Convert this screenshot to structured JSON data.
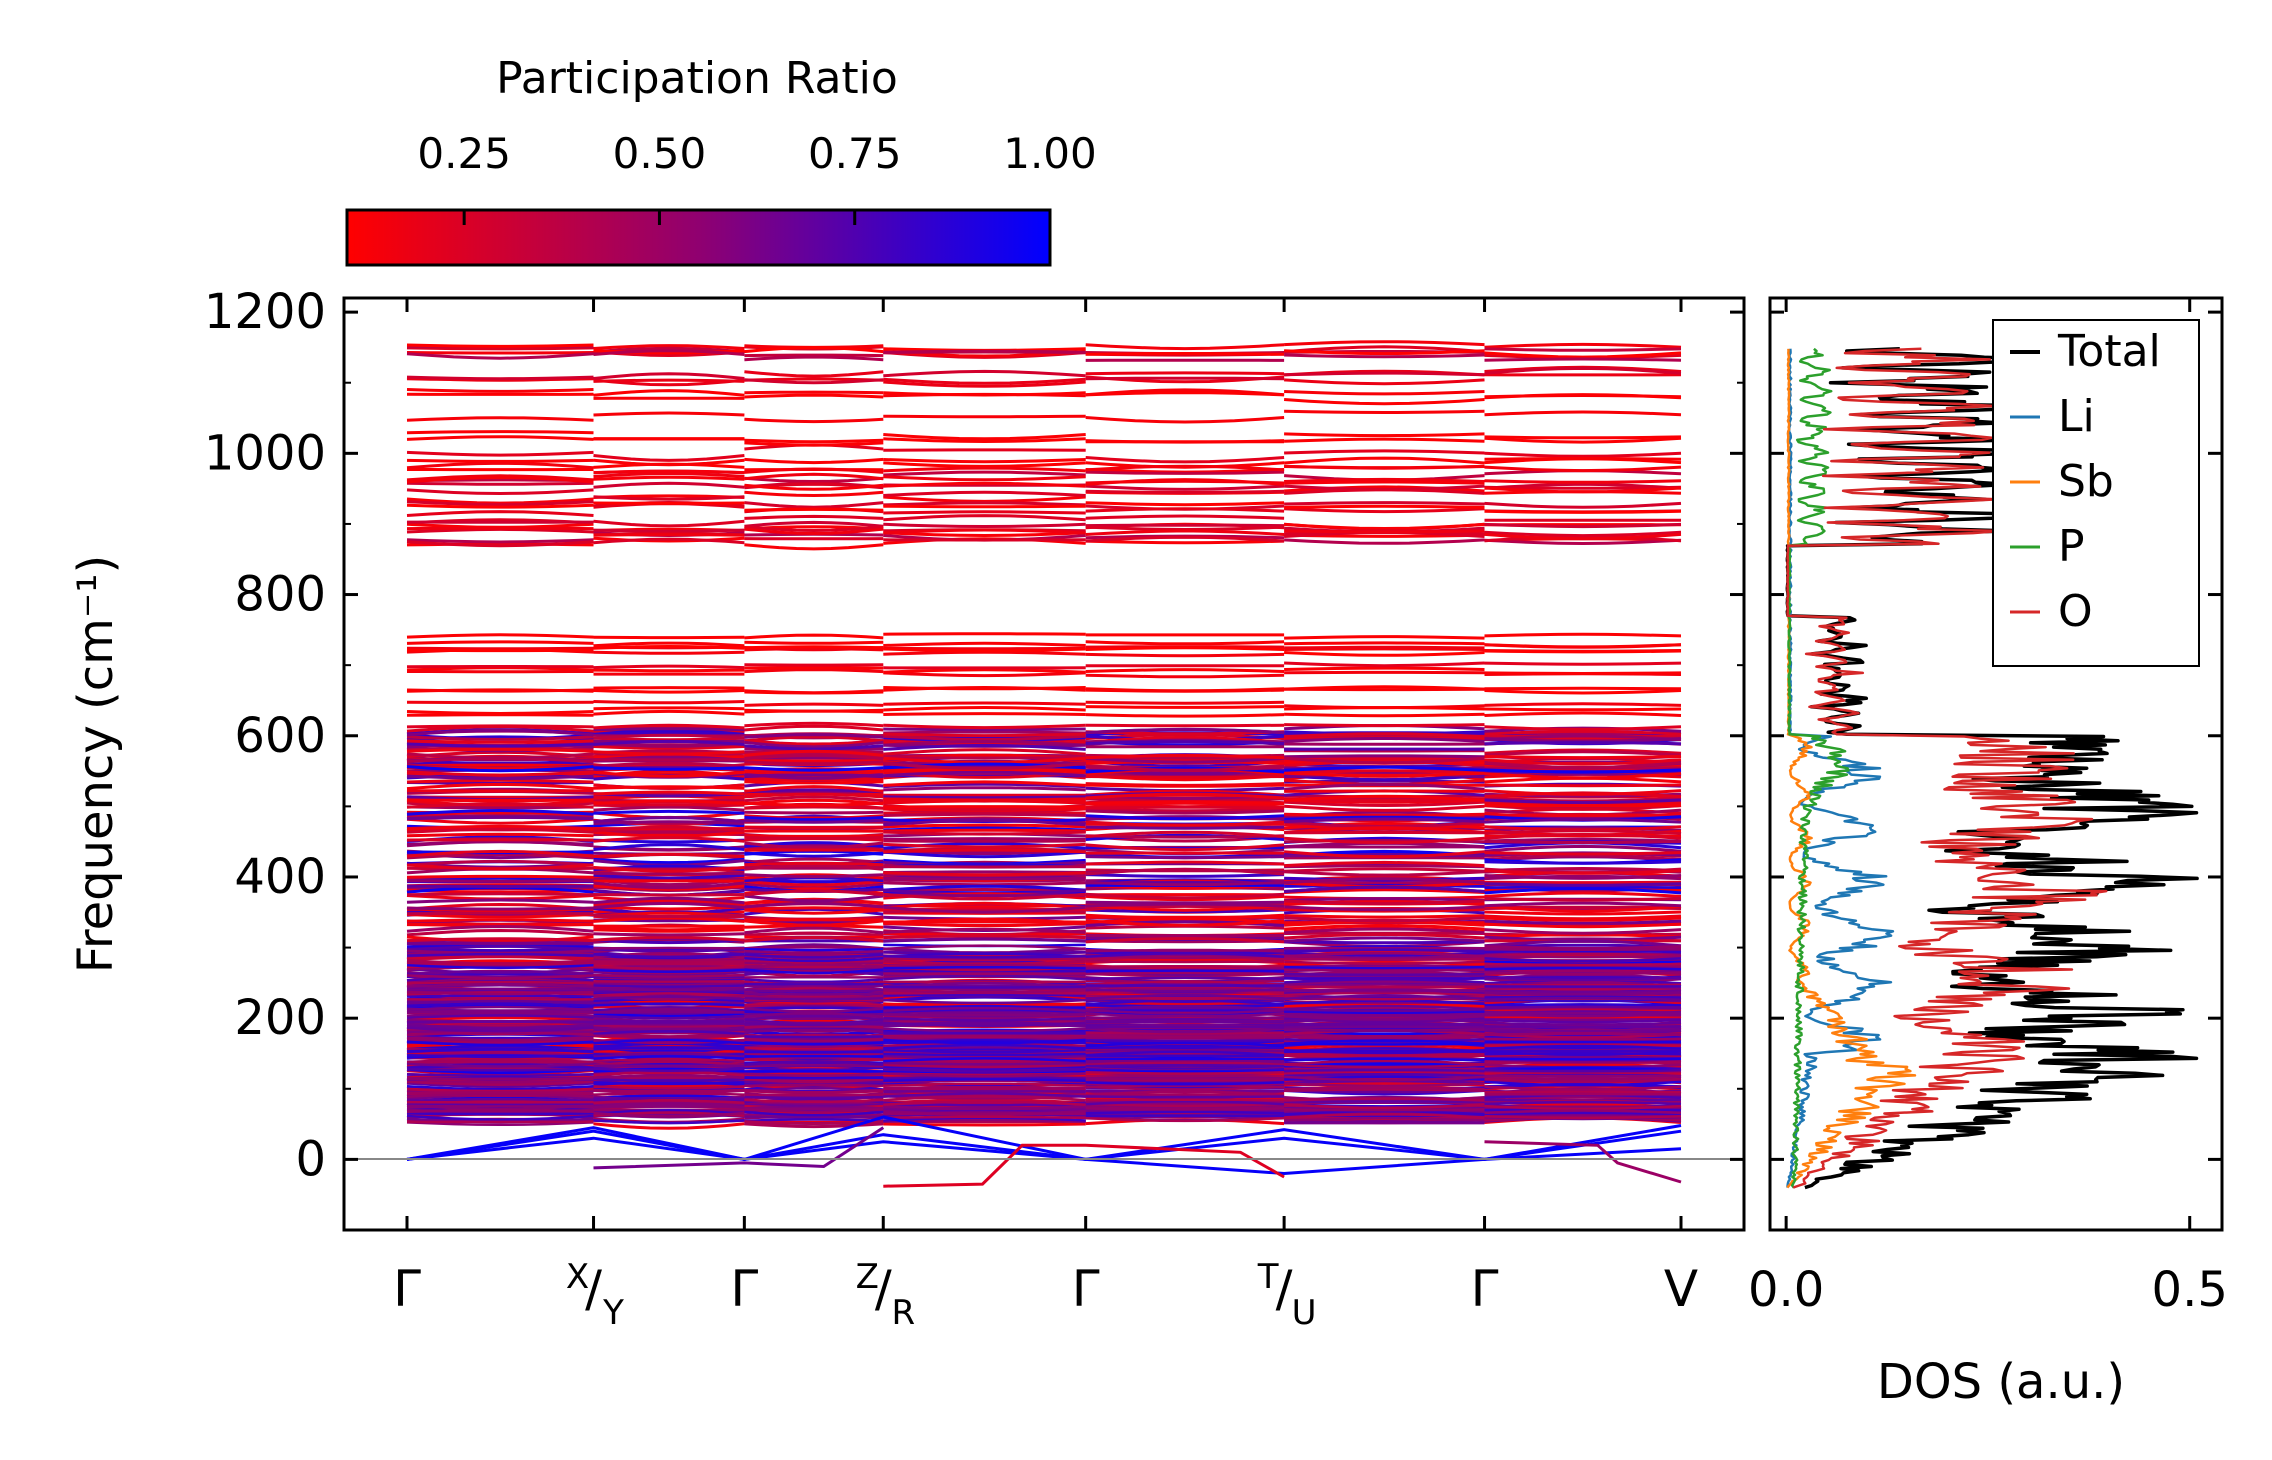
{
  "chart_data": [
    {
      "type": "line",
      "title": "",
      "xlabel": "",
      "ylabel": "Frequency (cm⁻¹)",
      "ylim": [
        -100,
        1220
      ],
      "yticks": [
        0,
        200,
        400,
        600,
        800,
        1000,
        1200
      ],
      "ytick_labels": [
        "0",
        "200",
        "400",
        "600",
        "800",
        "1000",
        "1200"
      ],
      "kpath": [
        {
          "main": "Γ",
          "sup": "",
          "sub": ""
        },
        {
          "main": "/",
          "sup": "X",
          "sub": "Y"
        },
        {
          "main": "Γ",
          "sup": "",
          "sub": ""
        },
        {
          "main": "/",
          "sup": "Z",
          "sub": "R"
        },
        {
          "main": "Γ",
          "sup": "",
          "sub": ""
        },
        {
          "main": "/",
          "sup": "T",
          "sub": "U"
        },
        {
          "main": "Γ",
          "sup": "",
          "sub": ""
        },
        {
          "main": "V",
          "sup": "",
          "sub": ""
        }
      ],
      "kpath_positions": [
        0,
        0.94,
        1.7,
        2.4,
        3.42,
        4.42,
        5.43,
        6.42
      ],
      "high_band_range": [
        870,
        1150
      ],
      "mid_band_range": [
        610,
        765
      ],
      "dense_band_range": [
        55,
        605
      ],
      "colorbar": {
        "title": "Participation Ratio",
        "range": [
          0.1,
          1.0
        ],
        "ticks": [
          0.25,
          0.5,
          0.75,
          1.0
        ],
        "tick_labels": [
          "0.25",
          "0.50",
          "0.75",
          "1.00"
        ],
        "low_color": "#ff0000",
        "high_color": "#0000ff"
      }
    },
    {
      "type": "line",
      "title": "",
      "xlabel": "DOS (a.u.)",
      "ylabel": "",
      "xlim": [
        -0.02,
        0.54
      ],
      "xticks": [
        0.0,
        0.5
      ],
      "xtick_labels": [
        "0.0",
        "0.5"
      ],
      "series": [
        {
          "name": "Total",
          "color": "#000000"
        },
        {
          "name": "Li",
          "color": "#1f77b4"
        },
        {
          "name": "Sb",
          "color": "#ff7f0e"
        },
        {
          "name": "P",
          "color": "#2ca02c"
        },
        {
          "name": "O",
          "color": "#d62728"
        }
      ]
    }
  ]
}
